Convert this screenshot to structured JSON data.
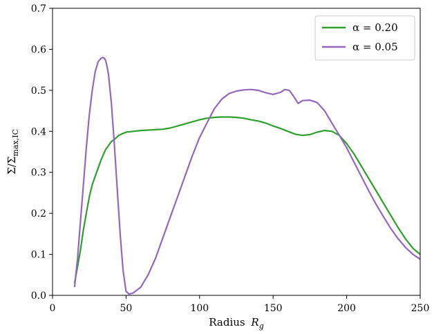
{
  "chart_data": {
    "type": "line",
    "xlabel_text": "Radius",
    "xlabel_symbol": "R",
    "xlabel_sub": "g",
    "ylabel_symbol": "Σ/Σ",
    "ylabel_sub": "max,IC",
    "xlim": [
      0,
      250
    ],
    "ylim": [
      0,
      0.7
    ],
    "xticks": [
      0,
      50,
      100,
      150,
      200,
      250
    ],
    "yticks": [
      0.0,
      0.1,
      0.2,
      0.3,
      0.4,
      0.5,
      0.6,
      0.7
    ],
    "grid": false,
    "legend_position": "top-right",
    "series": [
      {
        "name": "α = 0.20",
        "color": "#2ca02c",
        "x": [
          15,
          17,
          19,
          21,
          23,
          25,
          27,
          30,
          33,
          36,
          38,
          40,
          42,
          45,
          48,
          50,
          55,
          60,
          65,
          70,
          75,
          80,
          85,
          90,
          95,
          100,
          105,
          110,
          115,
          120,
          125,
          130,
          135,
          140,
          145,
          150,
          155,
          160,
          165,
          170,
          175,
          180,
          185,
          190,
          195,
          200,
          205,
          210,
          215,
          220,
          225,
          230,
          235,
          240,
          245,
          250
        ],
        "y": [
          0.03,
          0.07,
          0.11,
          0.16,
          0.2,
          0.24,
          0.27,
          0.3,
          0.33,
          0.355,
          0.365,
          0.375,
          0.38,
          0.39,
          0.395,
          0.398,
          0.4,
          0.402,
          0.403,
          0.404,
          0.405,
          0.408,
          0.413,
          0.418,
          0.423,
          0.428,
          0.432,
          0.434,
          0.435,
          0.435,
          0.434,
          0.432,
          0.428,
          0.425,
          0.42,
          0.413,
          0.407,
          0.4,
          0.393,
          0.39,
          0.392,
          0.398,
          0.402,
          0.4,
          0.39,
          0.37,
          0.345,
          0.315,
          0.285,
          0.255,
          0.225,
          0.195,
          0.165,
          0.138,
          0.115,
          0.1
        ]
      },
      {
        "name": "α = 0.05",
        "color": "#9467bd",
        "x": [
          15,
          17,
          19,
          21,
          23,
          25,
          27,
          29,
          31,
          33,
          34,
          35,
          36,
          37,
          38,
          40,
          42,
          44,
          46,
          48,
          50,
          52,
          55,
          60,
          65,
          70,
          75,
          80,
          85,
          90,
          95,
          100,
          105,
          110,
          115,
          120,
          125,
          130,
          135,
          140,
          145,
          150,
          155,
          158,
          161,
          164,
          167,
          170,
          175,
          180,
          185,
          190,
          195,
          200,
          205,
          210,
          215,
          220,
          225,
          230,
          235,
          240,
          245,
          250
        ],
        "y": [
          0.02,
          0.09,
          0.18,
          0.27,
          0.36,
          0.44,
          0.5,
          0.545,
          0.57,
          0.578,
          0.58,
          0.579,
          0.574,
          0.56,
          0.54,
          0.47,
          0.37,
          0.26,
          0.15,
          0.06,
          0.01,
          0.003,
          0.006,
          0.02,
          0.05,
          0.09,
          0.14,
          0.19,
          0.24,
          0.29,
          0.34,
          0.385,
          0.42,
          0.455,
          0.478,
          0.492,
          0.498,
          0.501,
          0.502,
          0.5,
          0.494,
          0.49,
          0.495,
          0.502,
          0.5,
          0.485,
          0.468,
          0.475,
          0.476,
          0.47,
          0.45,
          0.42,
          0.39,
          0.36,
          0.325,
          0.29,
          0.255,
          0.222,
          0.192,
          0.163,
          0.138,
          0.117,
          0.1,
          0.088
        ]
      }
    ]
  }
}
